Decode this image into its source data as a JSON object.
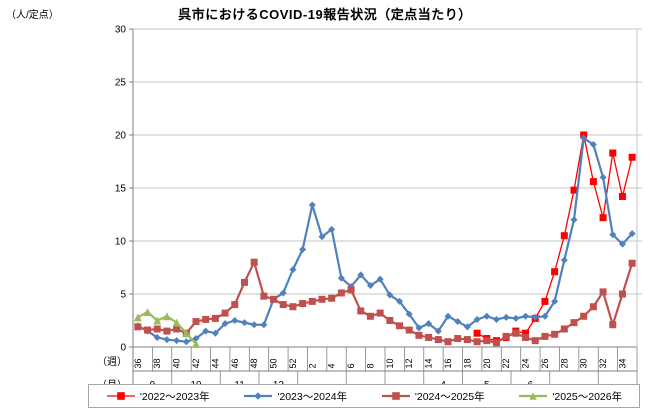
{
  "title": "呉市におけるCOVID-19報告状況（定点当たり）",
  "y_axis": {
    "unit_label": "（人/定点）",
    "ticks": [
      0,
      5,
      10,
      15,
      20,
      25,
      30
    ],
    "max": 30
  },
  "x_axis": {
    "week_row_label": "（週）",
    "month_row_label": "（月）",
    "months": [
      {
        "label": "9",
        "weeks": 4
      },
      {
        "label": "10",
        "weeks": 5
      },
      {
        "label": "11",
        "weeks": 4
      },
      {
        "label": "12",
        "weeks": 4
      },
      {
        "label": "",
        "weeks": 5
      },
      {
        "label": "",
        "weeks": 4
      },
      {
        "label": "",
        "weeks": 4
      },
      {
        "label": "4",
        "weeks": 4
      },
      {
        "label": "5",
        "weeks": 5
      },
      {
        "label": "6",
        "weeks": 4
      },
      {
        "label": "",
        "weeks": 5
      },
      {
        "label": "",
        "weeks": 4
      }
    ]
  },
  "legend": [
    {
      "label": "'2022～2023年",
      "color": "#FF0000",
      "marker": "square"
    },
    {
      "label": "'2023～2024年",
      "color": "#4F81BD",
      "marker": "diamond"
    },
    {
      "label": "'2024～2025年",
      "color": "#C0504D",
      "marker": "square"
    },
    {
      "label": "'2025～2026年",
      "color": "#9BBB59",
      "marker": "triangle"
    }
  ],
  "chart_data": {
    "type": "line",
    "x_weeks": [
      36,
      37,
      38,
      39,
      40,
      41,
      42,
      43,
      44,
      45,
      46,
      47,
      48,
      49,
      50,
      51,
      52,
      1,
      2,
      3,
      4,
      5,
      6,
      7,
      8,
      9,
      10,
      11,
      12,
      13,
      14,
      15,
      16,
      17,
      18,
      19,
      20,
      21,
      22,
      23,
      24,
      25,
      26,
      27,
      28,
      29,
      30,
      31,
      32,
      33,
      34,
      35
    ],
    "ylim": [
      0,
      30
    ],
    "grid": true,
    "legend_position": "bottom",
    "series": [
      {
        "name": "'2022～2023年",
        "color": "#FF0000",
        "marker": "square",
        "line_width": 1.3,
        "marker_size": 7,
        "start_index": 35,
        "values": [
          1.3,
          0.8,
          0.6,
          0.9,
          1.5,
          1.3,
          2.7,
          4.3,
          7.1,
          10.5,
          14.8,
          20.0,
          15.6,
          12.2,
          18.3,
          14.2,
          17.9
        ]
      },
      {
        "name": "'2023～2024年",
        "color": "#4F81BD",
        "marker": "diamond",
        "line_width": 2.2,
        "marker_size": 7,
        "start_index": 0,
        "values": [
          2.0,
          1.5,
          0.9,
          0.7,
          0.6,
          0.5,
          0.8,
          1.5,
          1.3,
          2.2,
          2.5,
          2.3,
          2.1,
          2.1,
          4.5,
          5.1,
          7.3,
          9.2,
          13.4,
          10.4,
          11.1,
          6.5,
          5.7,
          6.8,
          5.8,
          6.4,
          4.9,
          4.3,
          3.1,
          1.8,
          2.2,
          1.5,
          2.9,
          2.4,
          1.9,
          2.6,
          2.9,
          2.6,
          2.8,
          2.7,
          2.9,
          2.8,
          2.9,
          4.3,
          8.2,
          12.0,
          19.7,
          19.1,
          16.0,
          10.6,
          9.7,
          10.7
        ]
      },
      {
        "name": "'2024～2025年",
        "color": "#C0504D",
        "marker": "square",
        "line_width": 2.2,
        "marker_size": 7,
        "start_index": 0,
        "values": [
          1.9,
          1.6,
          1.7,
          1.5,
          1.7,
          1.3,
          2.4,
          2.6,
          2.7,
          3.2,
          4.0,
          6.1,
          8.0,
          4.8,
          4.5,
          4.0,
          3.8,
          4.1,
          4.3,
          4.5,
          4.6,
          5.1,
          5.4,
          3.4,
          2.9,
          3.2,
          2.5,
          2.0,
          1.6,
          1.1,
          0.9,
          0.7,
          0.5,
          0.8,
          0.7,
          0.5,
          0.6,
          0.4,
          1.0,
          1.3,
          0.9,
          0.6,
          1.0,
          1.2,
          1.7,
          2.3,
          2.9,
          3.8,
          5.2,
          2.1,
          5.0,
          7.9
        ]
      },
      {
        "name": "'2025～2026年",
        "color": "#9BBB59",
        "marker": "triangle",
        "line_width": 2.2,
        "marker_size": 8,
        "start_index": 0,
        "values": [
          2.8,
          3.3,
          2.5,
          2.9,
          2.3,
          1.3,
          0.3
        ]
      }
    ]
  }
}
